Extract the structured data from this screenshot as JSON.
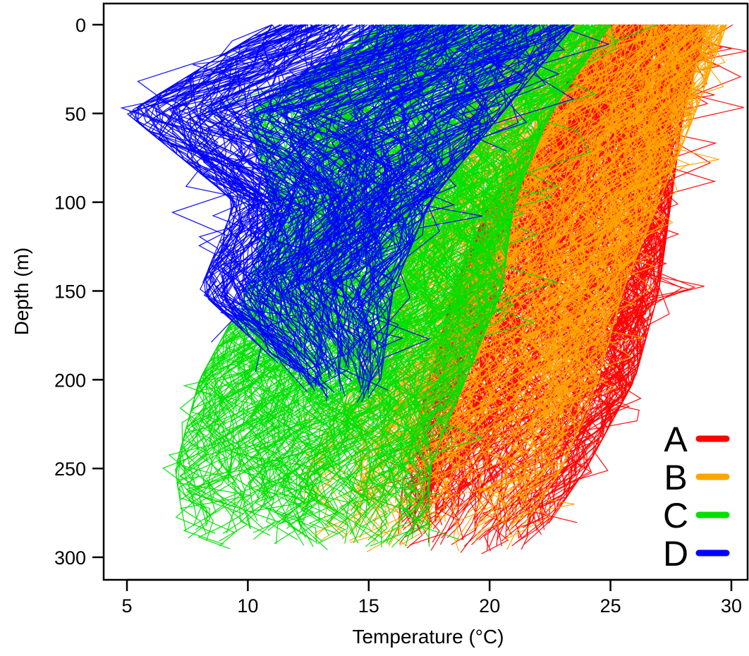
{
  "chart_data": {
    "type": "line",
    "title": "",
    "xlabel": "Temperature (°C)",
    "ylabel": "Depth (m)",
    "xlim": [
      4,
      31
    ],
    "ylim": [
      312,
      -12
    ],
    "y_inverted": true,
    "xticks": [
      5,
      10,
      15,
      20,
      25,
      30
    ],
    "yticks": [
      0,
      50,
      100,
      150,
      200,
      250,
      300
    ],
    "grid": false,
    "legend_position": "bottom-right",
    "series": [
      {
        "name": "A",
        "color": "#ff0000",
        "profiles_approx": 350,
        "envelope": {
          "depth": [
            0,
            50,
            100,
            150,
            200,
            250,
            300
          ],
          "temp_min": [
            24.5,
            22.5,
            20.0,
            18.5,
            17.5,
            16.5,
            16.0
          ],
          "temp_max": [
            29.0,
            28.0,
            27.5,
            27.0,
            26.0,
            24.0,
            21.5
          ]
        }
      },
      {
        "name": "B",
        "color": "#ffa500",
        "profiles_approx": 250,
        "envelope": {
          "depth": [
            0,
            50,
            100,
            150,
            200,
            250,
            300
          ],
          "temp_min": [
            21.5,
            19.0,
            17.5,
            16.0,
            14.5,
            12.5,
            12.0
          ],
          "temp_max": [
            29.8,
            28.5,
            27.0,
            25.5,
            24.5,
            23.0,
            20.5
          ]
        }
      },
      {
        "name": "C",
        "color": "#00e000",
        "profiles_approx": 350,
        "envelope": {
          "depth": [
            0,
            50,
            100,
            150,
            200,
            250,
            300
          ],
          "temp_min": [
            15.5,
            10.0,
            11.0,
            10.0,
            8.0,
            7.0,
            7.5
          ],
          "temp_max": [
            25.0,
            22.5,
            21.0,
            20.5,
            19.0,
            17.5,
            17.5
          ]
        }
      },
      {
        "name": "D",
        "color": "#0000ff",
        "profiles_approx": 250,
        "envelope": {
          "depth": [
            0,
            50,
            100,
            150,
            200,
            215
          ],
          "temp_min": [
            11.0,
            5.0,
            9.5,
            8.0,
            12.0,
            13.0
          ],
          "temp_max": [
            23.5,
            20.5,
            17.5,
            16.0,
            15.5,
            15.0
          ]
        }
      }
    ]
  }
}
